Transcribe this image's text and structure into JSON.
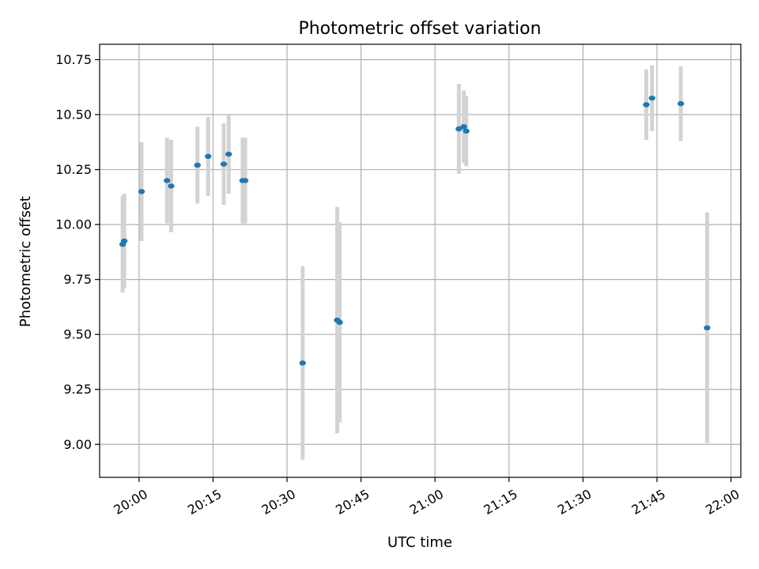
{
  "chart_data": {
    "type": "scatter",
    "title": "Photometric offset variation",
    "xlabel": "UTC time",
    "ylabel": "Photometric offset",
    "xlim": [
      "19:52",
      "22:02"
    ],
    "ylim": [
      8.85,
      10.82
    ],
    "grid": true,
    "x_ticks": [
      "20:00",
      "20:15",
      "20:30",
      "20:45",
      "21:00",
      "21:15",
      "21:30",
      "21:45",
      "22:00"
    ],
    "y_ticks": [
      "9.00",
      "9.25",
      "9.50",
      "9.75",
      "10.00",
      "10.25",
      "10.50",
      "10.75"
    ],
    "point_color": "#1f77b4",
    "errorbar_color": "#d3d3d3",
    "series": [
      {
        "points": [
          {
            "x": "19:56:40",
            "y": 9.91,
            "err": 0.22
          },
          {
            "x": "19:57:00",
            "y": 9.925,
            "err": 0.215
          },
          {
            "x": "20:00:30",
            "y": 10.15,
            "err": 0.225
          },
          {
            "x": "20:05:40",
            "y": 10.2,
            "err": 0.195
          },
          {
            "x": "20:06:30",
            "y": 10.175,
            "err": 0.21
          },
          {
            "x": "20:11:50",
            "y": 10.27,
            "err": 0.175
          },
          {
            "x": "20:14:00",
            "y": 10.31,
            "err": 0.18
          },
          {
            "x": "20:17:10",
            "y": 10.275,
            "err": 0.185
          },
          {
            "x": "20:18:10",
            "y": 10.32,
            "err": 0.18
          },
          {
            "x": "20:21:00",
            "y": 10.2,
            "err": 0.195
          },
          {
            "x": "20:21:30",
            "y": 10.2,
            "err": 0.195
          },
          {
            "x": "20:33:10",
            "y": 9.37,
            "err": 0.44
          },
          {
            "x": "20:40:10",
            "y": 9.565,
            "err": 0.515
          },
          {
            "x": "20:40:40",
            "y": 9.555,
            "err": 0.455
          },
          {
            "x": "21:04:50",
            "y": 10.435,
            "err": 0.205
          },
          {
            "x": "21:05:50",
            "y": 10.445,
            "err": 0.165
          },
          {
            "x": "21:06:20",
            "y": 10.425,
            "err": 0.16
          },
          {
            "x": "21:42:50",
            "y": 10.545,
            "err": 0.16
          },
          {
            "x": "21:44:00",
            "y": 10.575,
            "err": 0.15
          },
          {
            "x": "21:49:50",
            "y": 10.55,
            "err": 0.17
          },
          {
            "x": "21:55:10",
            "y": 9.53,
            "err": 0.525
          }
        ]
      }
    ]
  }
}
